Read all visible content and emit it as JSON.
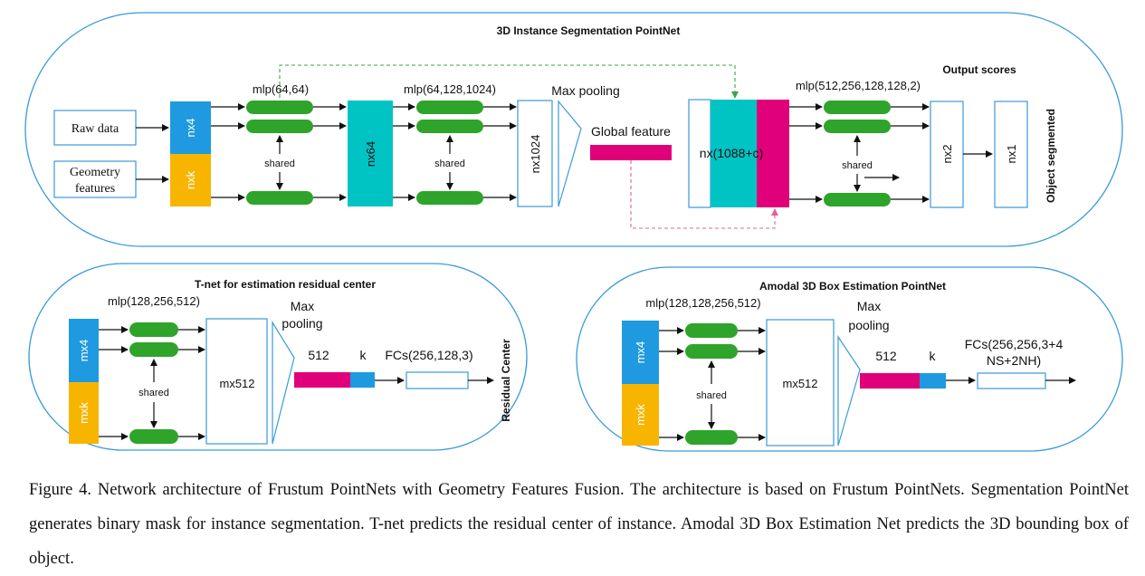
{
  "colors": {
    "blue": "#1f9ae0",
    "yellow": "#f7b500",
    "green": "#2ea42a",
    "teal": "#00c4c4",
    "magenta": "#e0007a",
    "frame": "#3a9ad9",
    "dashed_green": "#3aa64a",
    "dashed_magenta": "#e060a0"
  },
  "seg": {
    "title": "3D Instance Segmentation PointNet",
    "raw_data": "Raw data",
    "geometry_line1": "Geometry",
    "geometry_line2": "features",
    "nx4": "nx4",
    "nxk": "nxk",
    "mlp1": "mlp(64,64)",
    "shared": "shared",
    "nx64": "nx64",
    "mlp2": "mlp(64,128,1024)",
    "nx1024": "nx1024",
    "max_pooling": "Max pooling",
    "global_feature": "Global feature",
    "concat": "nx(1088+c)",
    "mlp3": "mlp(512,256,128,128,2)",
    "output_scores": "Output scores",
    "nx2": "nx2",
    "nx1": "nx1",
    "object_segmented": "Object segmented"
  },
  "tnet": {
    "title": "T-net for estimation residual center",
    "mx4": "mx4",
    "mxk": "mxk",
    "mlp": "mlp(128,256,512)",
    "shared": "shared",
    "mx512": "mx512",
    "max": "Max",
    "pooling": "pooling",
    "n512": "512",
    "k": "k",
    "fcs": "FCs(256,128,3)",
    "residual_center": "Residual Center"
  },
  "amodal": {
    "title": "Amodal 3D Box Estimation PointNet",
    "mx4": "mx4",
    "mxk": "mxk",
    "mlp": "mlp(128,128,256,512)",
    "shared": "shared",
    "mx512": "mx512",
    "max": "Max",
    "pooling": "pooling",
    "n512": "512",
    "k": "k",
    "fcs_line1": "FCs(256,256,3+4",
    "fcs_line2": "NS+2NH)"
  },
  "caption": "Figure 4. Network architecture of Frustum PointNets with Geometry Features Fusion. The architecture is based on Frustum PointNets. Segmentation PointNet generates binary mask for instance segmentation. T-net predicts the residual center of instance. Amodal 3D Box Estimation Net predicts the 3D bounding box of object."
}
